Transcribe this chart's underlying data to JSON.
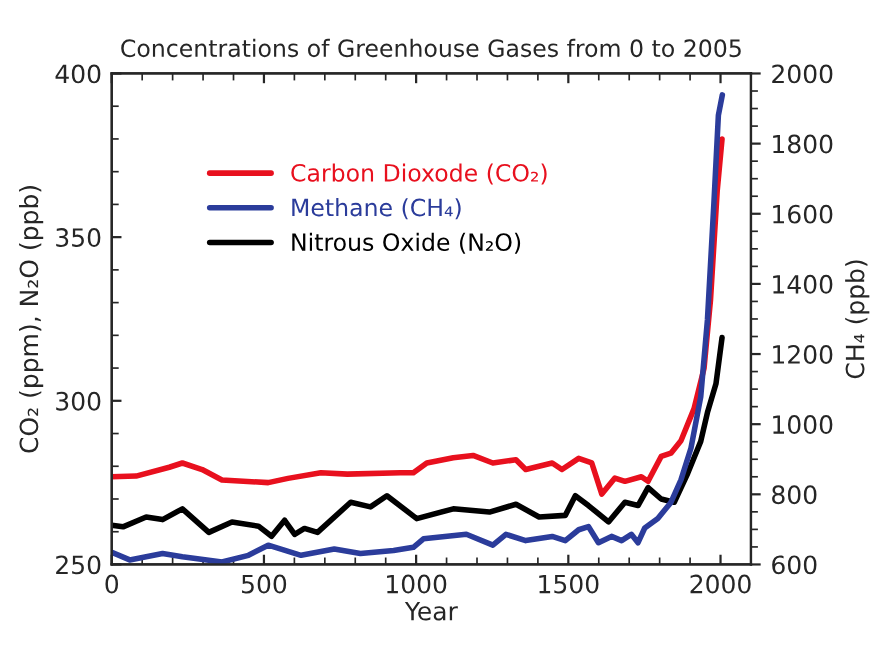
{
  "chart_data": {
    "type": "line",
    "title": "Concentrations of Greenhouse Gases from 0 to 2005",
    "xlabel": "Year",
    "ylabel": "CO₂ (ppm), N₂O (ppb)",
    "y2label": "CH₄ (ppb)",
    "xlim": [
      0,
      2100
    ],
    "xticks": [
      0,
      500,
      1000,
      1500,
      2000
    ],
    "ylim": [
      250,
      400
    ],
    "yticks": [
      250,
      300,
      350,
      400
    ],
    "y2lim": [
      600,
      2000
    ],
    "y2ticks": [
      600,
      800,
      1000,
      1200,
      1400,
      1600,
      1800,
      2000
    ],
    "grid": false,
    "legend": "top left",
    "marker": "none",
    "line_style": "solid",
    "series": [
      {
        "name": "Carbon Dioxode (CO₂)",
        "color": "#e8101e",
        "x": [
          0,
          80,
          189,
          232,
          297,
          362,
          514,
          579,
          687,
          774,
          948,
          991,
          1035,
          1122,
          1187,
          1252,
          1328,
          1360,
          1447,
          1479,
          1534,
          1577,
          1610,
          1653,
          1686,
          1740,
          1762,
          1805,
          1837,
          1870,
          1913,
          1946,
          1967,
          1989,
          2005
        ],
        "values": [
          276.8,
          277,
          279.7,
          281,
          279,
          275.8,
          275,
          276.3,
          278,
          277.6,
          278,
          278,
          281,
          282.6,
          283.3,
          281,
          282,
          279,
          281,
          279,
          282.4,
          281,
          271.5,
          276.4,
          275.4,
          276.8,
          275.4,
          283,
          284,
          287.8,
          297.6,
          310,
          330.7,
          364,
          380
        ]
      },
      {
        "name": "Methane (CH₄)",
        "color": "#2b3c9b",
        "axis": "y2",
        "x": [
          0,
          59,
          167,
          232,
          362,
          449,
          514,
          622,
          731,
          817,
          926,
          991,
          1024,
          1165,
          1252,
          1295,
          1360,
          1447,
          1490,
          1534,
          1566,
          1599,
          1642,
          1675,
          1707,
          1729,
          1751,
          1794,
          1837,
          1870,
          1903,
          1935,
          1957,
          1978,
          1993,
          2006
        ],
        "values": [
          635,
          613,
          631,
          622,
          607,
          626,
          655,
          626,
          644,
          631,
          640,
          649,
          673,
          686,
          655,
          686,
          668,
          680,
          668,
          699,
          708,
          662,
          680,
          668,
          686,
          662,
          704,
          731,
          777,
          841,
          932,
          1078,
          1297,
          1626,
          1881,
          1939
        ]
      },
      {
        "name": "Nitrous Oxide (N₂O)",
        "color": "#000000",
        "x": [
          0,
          37,
          113,
          167,
          232,
          319,
          395,
          482,
          525,
          568,
          601,
          633,
          676,
          785,
          850,
          904,
          1002,
          1122,
          1241,
          1328,
          1404,
          1490,
          1523,
          1566,
          1632,
          1686,
          1729,
          1762,
          1805,
          1848,
          1892,
          1935,
          1957,
          1985,
          2005
        ],
        "values": [
          262,
          261.5,
          264.5,
          263.7,
          267,
          259.8,
          263,
          261.7,
          258.6,
          263.5,
          259.2,
          261,
          259.8,
          269,
          267.6,
          271,
          264,
          267,
          266,
          268.4,
          264.5,
          265,
          271,
          268,
          263,
          269,
          268,
          273.5,
          270,
          269,
          277.8,
          287.6,
          296.4,
          305.2,
          319.3
        ]
      }
    ]
  }
}
